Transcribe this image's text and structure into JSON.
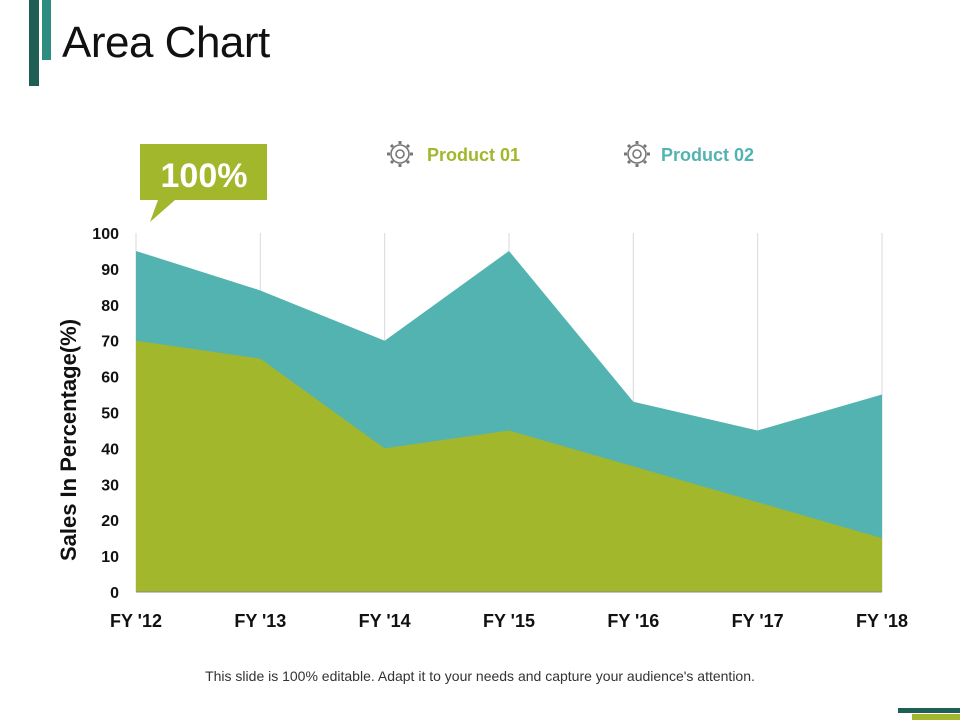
{
  "slide": {
    "title": "Area Chart",
    "callout_text": "100%",
    "footer_text": "This slide is 100% editable. Adapt it to your needs and capture your audience's attention."
  },
  "colors": {
    "accent_dark": "#1f5e54",
    "accent_teal": "#2f8c80",
    "product01": "#a2b72c",
    "product02": "#52b3b1",
    "gridline": "#d9d9d9",
    "axis_text": "#111111",
    "legend_icon": "#777777"
  },
  "legend": [
    {
      "label": "Product 01",
      "icon": "gear-icon",
      "color": "#a2b72c"
    },
    {
      "label": "Product 02",
      "icon": "gear-icon",
      "color": "#52b3b1"
    }
  ],
  "chart_data": {
    "type": "area",
    "stacked": true,
    "categories": [
      "FY '12",
      "FY '13",
      "FY '14",
      "FY '15",
      "FY '16",
      "FY '17",
      "FY '18"
    ],
    "series": [
      {
        "name": "Product 01",
        "values": [
          70,
          65,
          40,
          45,
          35,
          25,
          15
        ],
        "color": "#a2b72c"
      },
      {
        "name": "Product 02",
        "values": [
          25,
          19,
          30,
          50,
          18,
          20,
          40
        ],
        "color": "#52b3b1"
      }
    ],
    "title": "Area Chart",
    "xlabel": "",
    "ylabel": "Sales In Percentage(%)",
    "ylim": [
      0,
      100
    ],
    "yticks": [
      0,
      10,
      20,
      30,
      40,
      50,
      60,
      70,
      80,
      90,
      100
    ],
    "grid": "vertical",
    "legend_position": "top"
  }
}
